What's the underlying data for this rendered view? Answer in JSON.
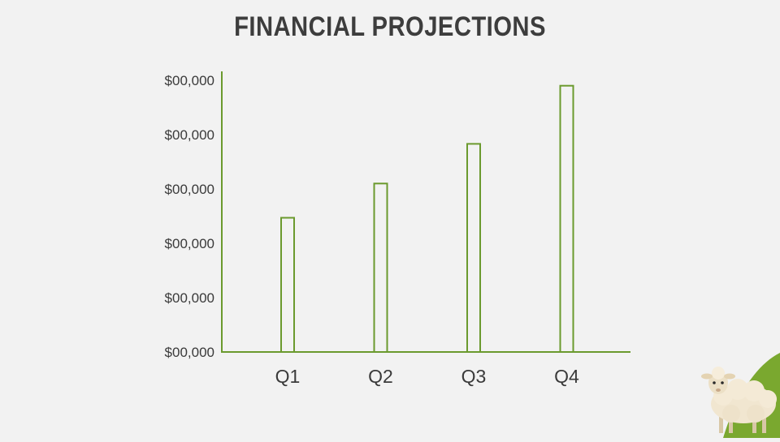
{
  "title": "FINANCIAL PROJECTIONS",
  "colors": {
    "background": "#f2f2f2",
    "accent": "#6b9a2e",
    "text": "#3d3d3d",
    "hill": "#7aa82f"
  },
  "decoration": {
    "icon": "sheep-icon"
  },
  "chart_data": {
    "type": "bar",
    "title": "FINANCIAL PROJECTIONS",
    "xlabel": "",
    "ylabel": "",
    "categories": [
      "Q1",
      "Q2",
      "Q3",
      "Q4"
    ],
    "values": [
      2.47,
      3.1,
      3.83,
      4.9
    ],
    "ylim": [
      0,
      5
    ],
    "y_tick_labels": [
      "$00,000",
      "$00,000",
      "$00,000",
      "$00,000",
      "$00,000",
      "$00,000"
    ],
    "bar_style": "outline",
    "grid": false,
    "legend": "none"
  }
}
